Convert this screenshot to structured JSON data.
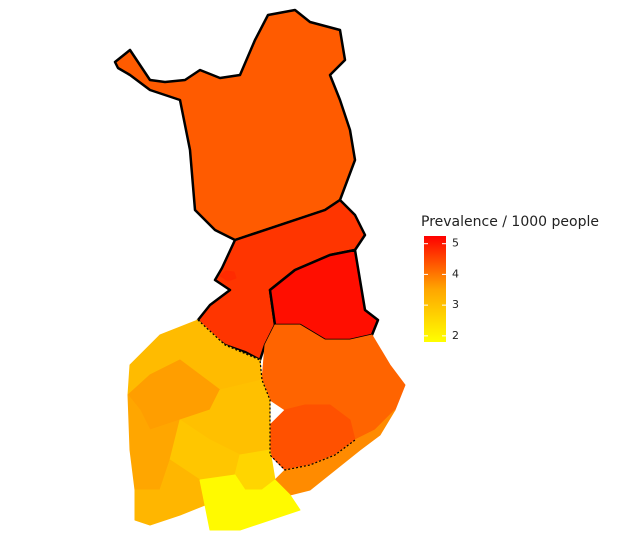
{
  "chart_data": {
    "type": "choropleth",
    "legend_title": "Prevalence / 1000 people",
    "scale": {
      "lim": [
        1.8,
        5.25
      ],
      "ticks": [
        2,
        3,
        4,
        5
      ],
      "colors": [
        "#ffff00",
        "#ffa500",
        "#ff0000"
      ]
    },
    "regions": {
      "values": [
        4.3,
        4.7,
        5.1,
        4.8,
        4.2,
        4.4,
        3.8,
        3.1,
        3.6,
        3.0,
        3.5,
        2.9,
        2.6,
        3.2,
        1.9
      ]
    }
  }
}
